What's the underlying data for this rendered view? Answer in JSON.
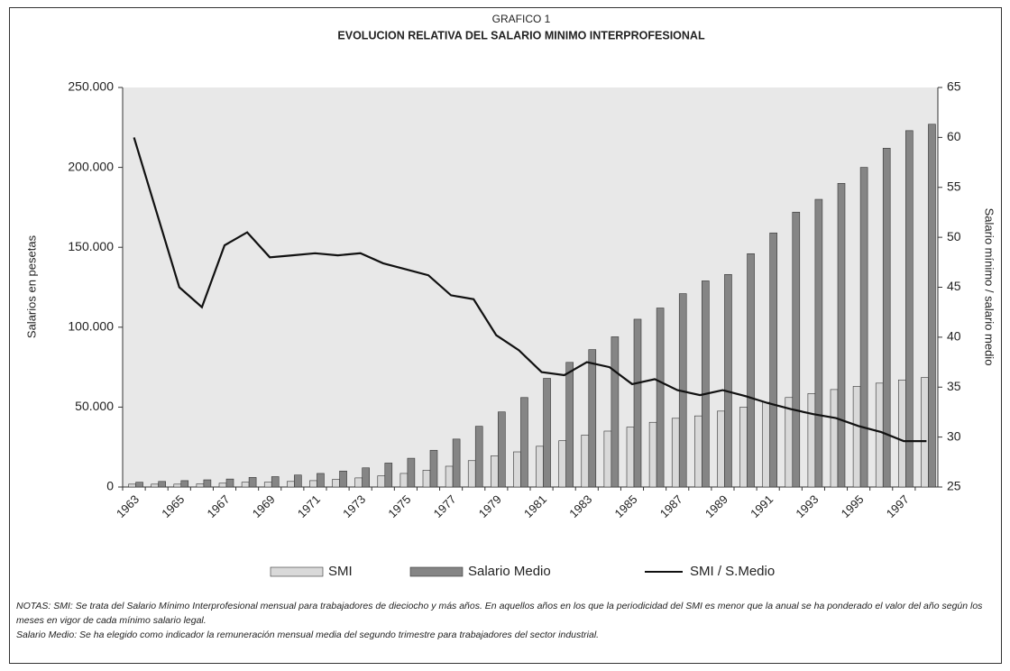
{
  "chart_data": {
    "type": "bar",
    "title": "GRAFICO 1",
    "subtitle": "EVOLUCION RELATIVA DEL SALARIO MINIMO INTERPROFESIONAL",
    "ylabel": "Salarios en pesetas",
    "y2label": "Salario mínimo / salario medio",
    "categories": [
      "1963",
      null,
      "1965",
      null,
      "1967",
      null,
      "1969",
      null,
      "1971",
      null,
      "1973",
      null,
      "1975",
      null,
      "1977",
      null,
      "1979",
      null,
      "1981",
      null,
      "1983",
      null,
      "1985",
      null,
      "1987",
      null,
      "1989",
      null,
      "1991",
      null,
      "1993",
      null,
      "1995",
      null,
      "1997",
      null
    ],
    "series": [
      {
        "name": "SMI",
        "color": "#d9d9d9",
        "values": [
          1800,
          1800,
          1800,
          2000,
          2400,
          3000,
          3000,
          3500,
          4000,
          4800,
          5700,
          7000,
          8500,
          10500,
          13000,
          16500,
          19500,
          22000,
          25500,
          29000,
          32500,
          35000,
          37500,
          40500,
          43000,
          44500,
          47500,
          50000,
          53000,
          56000,
          58500,
          61000,
          63000,
          65000,
          67000,
          68500
        ]
      },
      {
        "name": "Salario Medio",
        "color": "#858585",
        "values": [
          3000,
          3500,
          4000,
          4500,
          5000,
          6000,
          6500,
          7500,
          8500,
          10000,
          12000,
          15000,
          18000,
          23000,
          30000,
          38000,
          47000,
          56000,
          68000,
          78000,
          86000,
          94000,
          105000,
          112000,
          121000,
          129000,
          133000,
          146000,
          159000,
          172000,
          180000,
          190000,
          200000,
          212000,
          223000,
          227000
        ]
      },
      {
        "name": "SMI / S.Medio",
        "color": "#111111",
        "type": "line",
        "axis": "y2",
        "values": [
          60,
          52.5,
          45,
          43,
          49.2,
          50.5,
          48,
          48.2,
          48.4,
          48.2,
          48.4,
          47.4,
          46.8,
          46.2,
          44.2,
          43.8,
          40.2,
          38.7,
          36.5,
          36.2,
          37.5,
          37,
          35.3,
          35.8,
          34.7,
          34.2,
          34.7,
          34.1,
          33.4,
          32.8,
          32.3,
          31.9,
          31.1,
          30.5,
          29.6,
          29.6
        ]
      }
    ],
    "ylim": [
      0,
      250000
    ],
    "yticks": [
      0,
      {
        "value": 50000,
        "label": "50.000"
      },
      {
        "value": 100000,
        "label": "100.000"
      },
      {
        "value": 150000,
        "label": "150.000"
      },
      {
        "value": 200000,
        "label": "200.000"
      },
      {
        "value": 250000,
        "label": "250.000"
      }
    ],
    "y2lim": [
      25,
      65
    ],
    "y2ticks": [
      25,
      30,
      35,
      40,
      45,
      50,
      55,
      60,
      65
    ],
    "legend": "bottom",
    "background": "#e8e8e8",
    "notes": [
      "NOTAS: SMI: Se trata del Salario Mínimo Interprofesional mensual para trabajadores de dieciocho y más años. En aquellos años en los que la periodicidad del SMI es menor que la anual se ha ponderado el valor del año según los meses en vigor de cada mínimo salario legal.",
      "Salario Medio: Se ha elegido como indicador la remuneración mensual media del segundo trimestre para trabajadores del sector industrial."
    ]
  }
}
